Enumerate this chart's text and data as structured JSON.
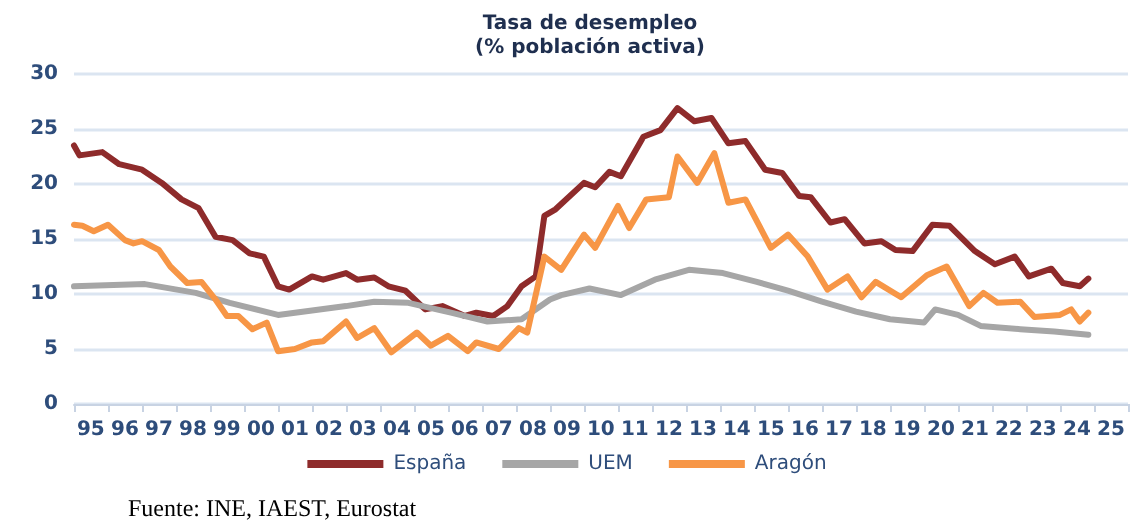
{
  "chart_data": {
    "type": "line",
    "title": "Tasa de desempleo",
    "subtitle": "(% población activa)",
    "xlim": [
      "1995-01",
      "2026-01"
    ],
    "xticks": [
      {
        "value": "1995-01",
        "label": null
      },
      {
        "value": "1995-07",
        "label": "95"
      },
      {
        "value": "1996-01",
        "label": null
      },
      {
        "value": "1996-07",
        "label": "96"
      },
      {
        "value": "1997-01",
        "label": null
      },
      {
        "value": "1997-07",
        "label": "97"
      },
      {
        "value": "1998-01",
        "label": null
      },
      {
        "value": "1998-07",
        "label": "98"
      },
      {
        "value": "1999-01",
        "label": null
      },
      {
        "value": "1999-07",
        "label": "99"
      },
      {
        "value": "2000-01",
        "label": null
      },
      {
        "value": "2000-07",
        "label": "00"
      },
      {
        "value": "2001-01",
        "label": null
      },
      {
        "value": "2001-07",
        "label": "01"
      },
      {
        "value": "2002-01",
        "label": null
      },
      {
        "value": "2002-07",
        "label": "02"
      },
      {
        "value": "2003-01",
        "label": null
      },
      {
        "value": "2003-07",
        "label": "03"
      },
      {
        "value": "2004-01",
        "label": null
      },
      {
        "value": "2004-07",
        "label": "04"
      },
      {
        "value": "2005-01",
        "label": null
      },
      {
        "value": "2005-07",
        "label": "05"
      },
      {
        "value": "2006-01",
        "label": null
      },
      {
        "value": "2006-07",
        "label": "06"
      },
      {
        "value": "2007-01",
        "label": null
      },
      {
        "value": "2007-07",
        "label": "07"
      },
      {
        "value": "2008-01",
        "label": null
      },
      {
        "value": "2008-07",
        "label": "08"
      },
      {
        "value": "2009-01",
        "label": null
      },
      {
        "value": "2009-07",
        "label": "09"
      },
      {
        "value": "2010-01",
        "label": null
      },
      {
        "value": "2010-07",
        "label": "10"
      },
      {
        "value": "2011-01",
        "label": null
      },
      {
        "value": "2011-07",
        "label": "11"
      },
      {
        "value": "2012-01",
        "label": null
      },
      {
        "value": "2012-07",
        "label": "12"
      },
      {
        "value": "2013-01",
        "label": null
      },
      {
        "value": "2013-07",
        "label": "13"
      },
      {
        "value": "2014-01",
        "label": null
      },
      {
        "value": "2014-07",
        "label": "14"
      },
      {
        "value": "2015-01",
        "label": null
      },
      {
        "value": "2015-07",
        "label": "15"
      },
      {
        "value": "2016-01",
        "label": null
      },
      {
        "value": "2016-07",
        "label": "16"
      },
      {
        "value": "2017-01",
        "label": null
      },
      {
        "value": "2017-07",
        "label": "17"
      },
      {
        "value": "2018-01",
        "label": null
      },
      {
        "value": "2018-07",
        "label": "18"
      },
      {
        "value": "2019-01",
        "label": null
      },
      {
        "value": "2019-07",
        "label": "19"
      },
      {
        "value": "2020-01",
        "label": null
      },
      {
        "value": "2020-07",
        "label": "20"
      },
      {
        "value": "2021-01",
        "label": null
      },
      {
        "value": "2021-07",
        "label": "21"
      },
      {
        "value": "2022-01",
        "label": null
      },
      {
        "value": "2022-07",
        "label": "22"
      },
      {
        "value": "2023-01",
        "label": null
      },
      {
        "value": "2023-07",
        "label": "23"
      },
      {
        "value": "2024-01",
        "label": null
      },
      {
        "value": "2024-07",
        "label": "24"
      },
      {
        "value": "2025-01",
        "label": null
      },
      {
        "value": "2025-07",
        "label": "25"
      },
      {
        "value": "2026-01",
        "label": null
      }
    ],
    "ylim": [
      0,
      30
    ],
    "yticks": [
      0,
      5,
      10,
      15,
      20,
      25,
      30
    ],
    "grid": "y",
    "legend": "bottom",
    "marker": "none",
    "line_style": "solid",
    "annotations": [
      "Fuente: INE, IAEST, Eurostat"
    ],
    "series": [
      {
        "name": "España",
        "color": "#8e2b2b",
        "x": [
          "1995-01",
          "1995-03",
          "1995-11",
          "1996-05",
          "1997-01",
          "1997-08",
          "1998-03",
          "1998-09",
          "1999-03",
          "1999-09",
          "2000-03",
          "2000-08",
          "2001-01",
          "2001-05",
          "2002-01",
          "2002-05",
          "2003-01",
          "2003-05",
          "2003-11",
          "2004-04",
          "2004-10",
          "2005-05",
          "2005-11",
          "2006-07",
          "2006-11",
          "2007-05",
          "2007-10",
          "2008-03",
          "2008-08",
          "2008-11",
          "2009-03",
          "2010-01",
          "2010-05",
          "2010-10",
          "2011-02",
          "2011-10",
          "2012-04",
          "2012-10",
          "2013-04",
          "2013-10",
          "2014-04",
          "2014-10",
          "2015-05",
          "2015-11",
          "2016-05",
          "2016-09",
          "2017-04",
          "2017-09",
          "2018-04",
          "2018-10",
          "2019-03",
          "2019-09",
          "2020-04",
          "2020-10",
          "2021-07",
          "2022-02",
          "2022-09",
          "2023-02",
          "2023-10",
          "2024-02",
          "2024-08",
          "2024-11"
        ],
        "values": [
          23.5,
          22.6,
          22.9,
          21.8,
          21.3,
          20.1,
          18.6,
          17.8,
          15.2,
          14.9,
          13.7,
          13.4,
          10.7,
          10.4,
          11.6,
          11.3,
          11.9,
          11.3,
          11.5,
          10.7,
          10.3,
          8.6,
          8.9,
          8.0,
          8.3,
          8.0,
          8.9,
          10.7,
          11.6,
          17.1,
          17.7,
          20.1,
          19.7,
          21.1,
          20.7,
          24.3,
          24.9,
          26.9,
          25.7,
          26.0,
          23.7,
          23.9,
          21.3,
          21.0,
          18.9,
          18.8,
          16.5,
          16.8,
          14.6,
          14.8,
          14.0,
          13.9,
          16.3,
          16.2,
          13.9,
          12.7,
          13.4,
          11.6,
          12.3,
          11.0,
          10.7,
          11.4
        ]
      },
      {
        "name": "UEM",
        "color": "#a6a6a6",
        "x": [
          "1995-01",
          "1997-02",
          "1998-08",
          "1999-08",
          "2001-01",
          "2002-01",
          "2003-01",
          "2003-11",
          "2004-11",
          "2006-02",
          "2007-03",
          "2008-03",
          "2009-01",
          "2009-05",
          "2010-03",
          "2011-02",
          "2012-02",
          "2013-02",
          "2014-02",
          "2015-02",
          "2016-01",
          "2017-01",
          "2018-01",
          "2019-01",
          "2020-01",
          "2020-05",
          "2021-01",
          "2021-09",
          "2022-11",
          "2023-11",
          "2024-11"
        ],
        "values": [
          10.7,
          10.9,
          10.1,
          9.2,
          8.1,
          8.5,
          8.9,
          9.3,
          9.2,
          8.3,
          7.5,
          7.7,
          9.5,
          9.9,
          10.5,
          9.9,
          11.3,
          12.2,
          11.9,
          11.1,
          10.3,
          9.3,
          8.4,
          7.7,
          7.4,
          8.6,
          8.1,
          7.1,
          6.8,
          6.6,
          6.3
        ]
      },
      {
        "name": "Aragón",
        "color": "#f79646",
        "x": [
          "1995-01",
          "1995-04",
          "1995-08",
          "1996-01",
          "1996-07",
          "1996-10",
          "1997-01",
          "1997-07",
          "1997-11",
          "1998-05",
          "1998-10",
          "1999-03",
          "1999-07",
          "1999-11",
          "2000-04",
          "2000-09",
          "2001-01",
          "2001-07",
          "2002-01",
          "2002-05",
          "2003-01",
          "2003-05",
          "2003-11",
          "2004-05",
          "2005-02",
          "2005-07",
          "2006-01",
          "2006-08",
          "2006-11",
          "2007-07",
          "2008-02",
          "2008-05",
          "2008-11",
          "2009-05",
          "2010-01",
          "2010-05",
          "2011-01",
          "2011-05",
          "2011-11",
          "2012-07",
          "2012-10",
          "2013-05",
          "2013-11",
          "2014-04",
          "2014-10",
          "2015-07",
          "2016-01",
          "2016-08",
          "2017-03",
          "2017-10",
          "2018-03",
          "2018-08",
          "2019-05",
          "2020-02",
          "2020-09",
          "2021-05",
          "2021-10",
          "2022-03",
          "2022-11",
          "2023-04",
          "2024-01",
          "2024-05",
          "2024-08",
          "2024-11"
        ],
        "values": [
          16.3,
          16.2,
          15.7,
          16.3,
          14.9,
          14.6,
          14.8,
          14.0,
          12.5,
          11.0,
          11.1,
          9.5,
          8.0,
          8.0,
          6.8,
          7.4,
          4.8,
          5.0,
          5.6,
          5.7,
          7.5,
          6.0,
          6.9,
          4.7,
          6.5,
          5.3,
          6.2,
          4.8,
          5.6,
          5.0,
          6.9,
          6.5,
          13.4,
          12.2,
          15.4,
          14.2,
          18.0,
          16.0,
          18.6,
          18.8,
          22.5,
          20.1,
          22.8,
          18.3,
          18.6,
          14.2,
          15.4,
          13.4,
          10.4,
          11.6,
          9.7,
          11.1,
          9.7,
          11.7,
          12.5,
          8.9,
          10.1,
          9.2,
          9.3,
          7.9,
          8.1,
          8.6,
          7.5,
          8.3
        ]
      }
    ]
  }
}
